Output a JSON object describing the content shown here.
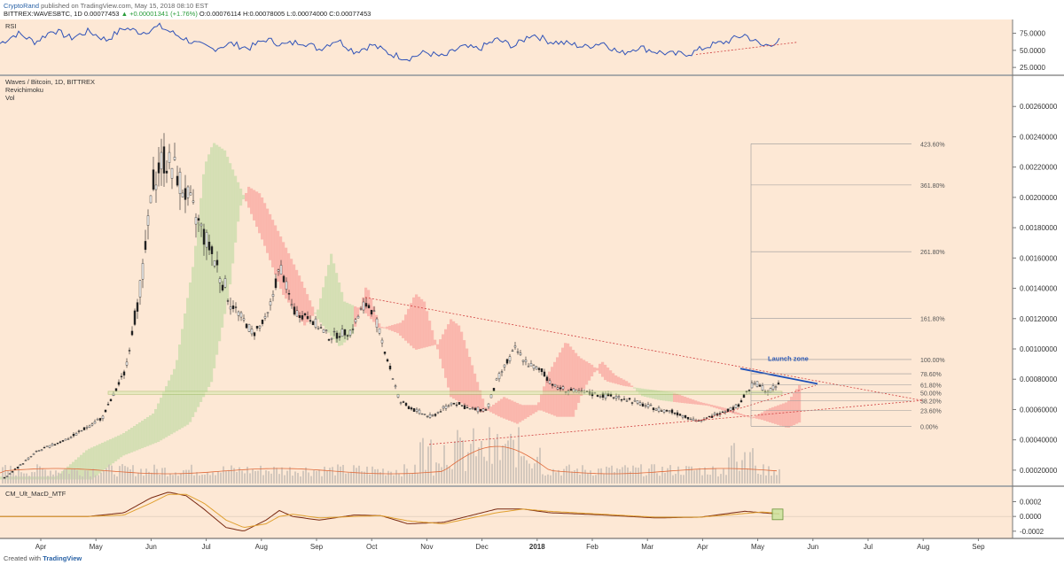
{
  "header": {
    "author": "CryptoRand",
    "published": "published on TradingView.com, May 15, 2018 08:10 EST",
    "symbol": "BITTREX:WAVESBTC, 1D 0.00077453",
    "change": "▲ +0.00001341 (+1.76%)",
    "ohlc": "O:0.00076114 H:0.00078005 L:0.00074000 C:0.00077453"
  },
  "footer": {
    "created_with": "Created with",
    "brand": "TradingView"
  },
  "colors": {
    "background": "#fde8d5",
    "candle": "#222222",
    "rsi": "#2f52b8",
    "cloud_red": "#f8a8a0",
    "cloud_green": "#c8dcaa",
    "trend": "#d04040",
    "launch": "#1c4fb8",
    "macd": "#7a2a12",
    "signal": "#e0a030",
    "fib": "#999999"
  },
  "chart_data": [
    {
      "type": "line",
      "panel": "rsi",
      "title": "RSI",
      "ylim": [
        20,
        90
      ],
      "y_ticks": [
        "75.0000",
        "50.0000",
        "25.0000"
      ],
      "y_tick_values": [
        75,
        50,
        25
      ],
      "series": [
        {
          "x": [
            0,
            20,
            40,
            60,
            80,
            100,
            120,
            140,
            160,
            180,
            200,
            220,
            240,
            260,
            280,
            300,
            320,
            340,
            360,
            380,
            400,
            420,
            440,
            460,
            480,
            500,
            520,
            540,
            560,
            580,
            600,
            620,
            640,
            660,
            680,
            700,
            720,
            740,
            760,
            780,
            800,
            820,
            840,
            860,
            880
          ],
          "values": [
            60,
            75,
            62,
            80,
            68,
            78,
            65,
            83,
            76,
            85,
            72,
            60,
            52,
            60,
            53,
            66,
            58,
            63,
            52,
            66,
            48,
            58,
            45,
            38,
            47,
            40,
            55,
            52,
            66,
            56,
            74,
            63,
            60,
            55,
            62,
            45,
            55,
            48,
            44,
            46,
            57,
            63,
            73,
            56,
            64
          ]
        }
      ],
      "trendline": {
        "x": [
          785,
          900
        ],
        "y": [
          44,
          62
        ]
      }
    },
    {
      "type": "candlestick",
      "panel": "price",
      "title": "Waves / Bitcoin, 1D, BITTREX",
      "indicators": [
        "Revichimoku",
        "Vol"
      ],
      "ylim": [
        0.0001,
        0.0028
      ],
      "y_ticks": [
        "0.00260000",
        "0.00240000",
        "0.00220000",
        "0.00200000",
        "0.00180000",
        "0.00160000",
        "0.00140000",
        "0.00120000",
        "0.00100000",
        "0.00080000",
        "0.00060000",
        "0.00040000",
        "0.00020000"
      ],
      "y_tick_values": [
        0.0026,
        0.0024,
        0.0022,
        0.002,
        0.0018,
        0.0016,
        0.0014,
        0.0012,
        0.001,
        0.0008,
        0.0006,
        0.0004,
        0.0002
      ],
      "price_path": {
        "x": [
          5,
          40,
          80,
          115,
          140,
          160,
          172,
          182,
          195,
          210,
          225,
          240,
          260,
          285,
          300,
          315,
          330,
          350,
          370,
          395,
          410,
          420,
          435,
          450,
          465,
          485,
          510,
          530,
          548,
          560,
          580,
          595,
          610,
          625,
          645,
          670,
          700,
          730,
          760,
          790,
          810,
          830,
          850,
          865,
          880
        ],
        "values": [
          0.00015,
          0.00032,
          0.00042,
          0.00055,
          0.00085,
          0.0015,
          0.0021,
          0.00225,
          0.0022,
          0.002,
          0.0018,
          0.0016,
          0.0013,
          0.0011,
          0.0012,
          0.00155,
          0.00125,
          0.0012,
          0.00108,
          0.00112,
          0.0013,
          0.00125,
          0.00095,
          0.00065,
          0.0006,
          0.00055,
          0.00065,
          0.0006,
          0.0006,
          0.0008,
          0.001,
          0.0009,
          0.00085,
          0.00075,
          0.00072,
          0.0007,
          0.00068,
          0.00062,
          0.00058,
          0.00052,
          0.00058,
          0.00062,
          0.00078,
          0.00072,
          0.00077
        ]
      },
      "fibonacci": {
        "levels": [
          "423.60%",
          "361.80%",
          "261.80%",
          "161.80%",
          "100.00%",
          "78.60%",
          "61.80%",
          "50.00%",
          "38.20%",
          "23.60%",
          "0.00%"
        ],
        "values": [
          4.236,
          3.618,
          2.618,
          1.618,
          1.0,
          0.786,
          0.618,
          0.5,
          0.382,
          0.236,
          0.0
        ],
        "low": 0.00049,
        "high": 0.00093
      },
      "annotation": "Launch zone",
      "support_band": [
        0.0007,
        0.00072
      ]
    },
    {
      "type": "line",
      "panel": "macd",
      "title": "CM_Ult_MacD_MTF",
      "ylim": [
        -0.00025,
        0.00035
      ],
      "y_ticks": [
        "0.0002",
        "0.0000",
        "-0.0002"
      ],
      "y_tick_values": [
        0.0002,
        0.0,
        -0.0002
      ],
      "series": [
        {
          "name": "macd",
          "x": [
            0,
            100,
            140,
            170,
            190,
            210,
            230,
            255,
            275,
            300,
            315,
            330,
            360,
            400,
            430,
            460,
            500,
            560,
            590,
            620,
            680,
            740,
            790,
            840,
            860,
            880
          ],
          "values": [
            0,
            0,
            5e-05,
            0.00025,
            0.00033,
            0.00028,
            0.0001,
            -0.00015,
            -0.0002,
            -5e-05,
            8e-05,
            0.0,
            -5e-05,
            2e-05,
            1e-05,
            -0.0001,
            -8e-05,
            0.0001,
            0.0001,
            5e-05,
            2e-05,
            -2e-05,
            -1e-05,
            7e-05,
            5e-05,
            3e-05
          ]
        },
        {
          "name": "signal",
          "x": [
            0,
            100,
            140,
            170,
            190,
            210,
            230,
            255,
            275,
            300,
            315,
            330,
            360,
            400,
            430,
            460,
            500,
            560,
            590,
            620,
            680,
            740,
            790,
            840,
            860,
            880
          ],
          "values": [
            0,
            0,
            2e-05,
            0.00018,
            0.0003,
            0.0003,
            0.00018,
            -5e-05,
            -0.00015,
            -0.0001,
            0.0,
            3e-05,
            -2e-05,
            0.0,
            1e-05,
            -6e-05,
            -0.0001,
            5e-05,
            0.0001,
            7e-05,
            3e-05,
            -1e-05,
            -1e-05,
            4e-05,
            6e-05,
            4e-05
          ]
        }
      ]
    }
  ],
  "time_axis": {
    "labels": [
      "Apr",
      "May",
      "Jun",
      "Jul",
      "Aug",
      "Sep",
      "Oct",
      "Nov",
      "Dec",
      "2018",
      "Feb",
      "Mar",
      "Apr",
      "May",
      "Jun",
      "Jul",
      "Aug",
      "Sep"
    ]
  }
}
